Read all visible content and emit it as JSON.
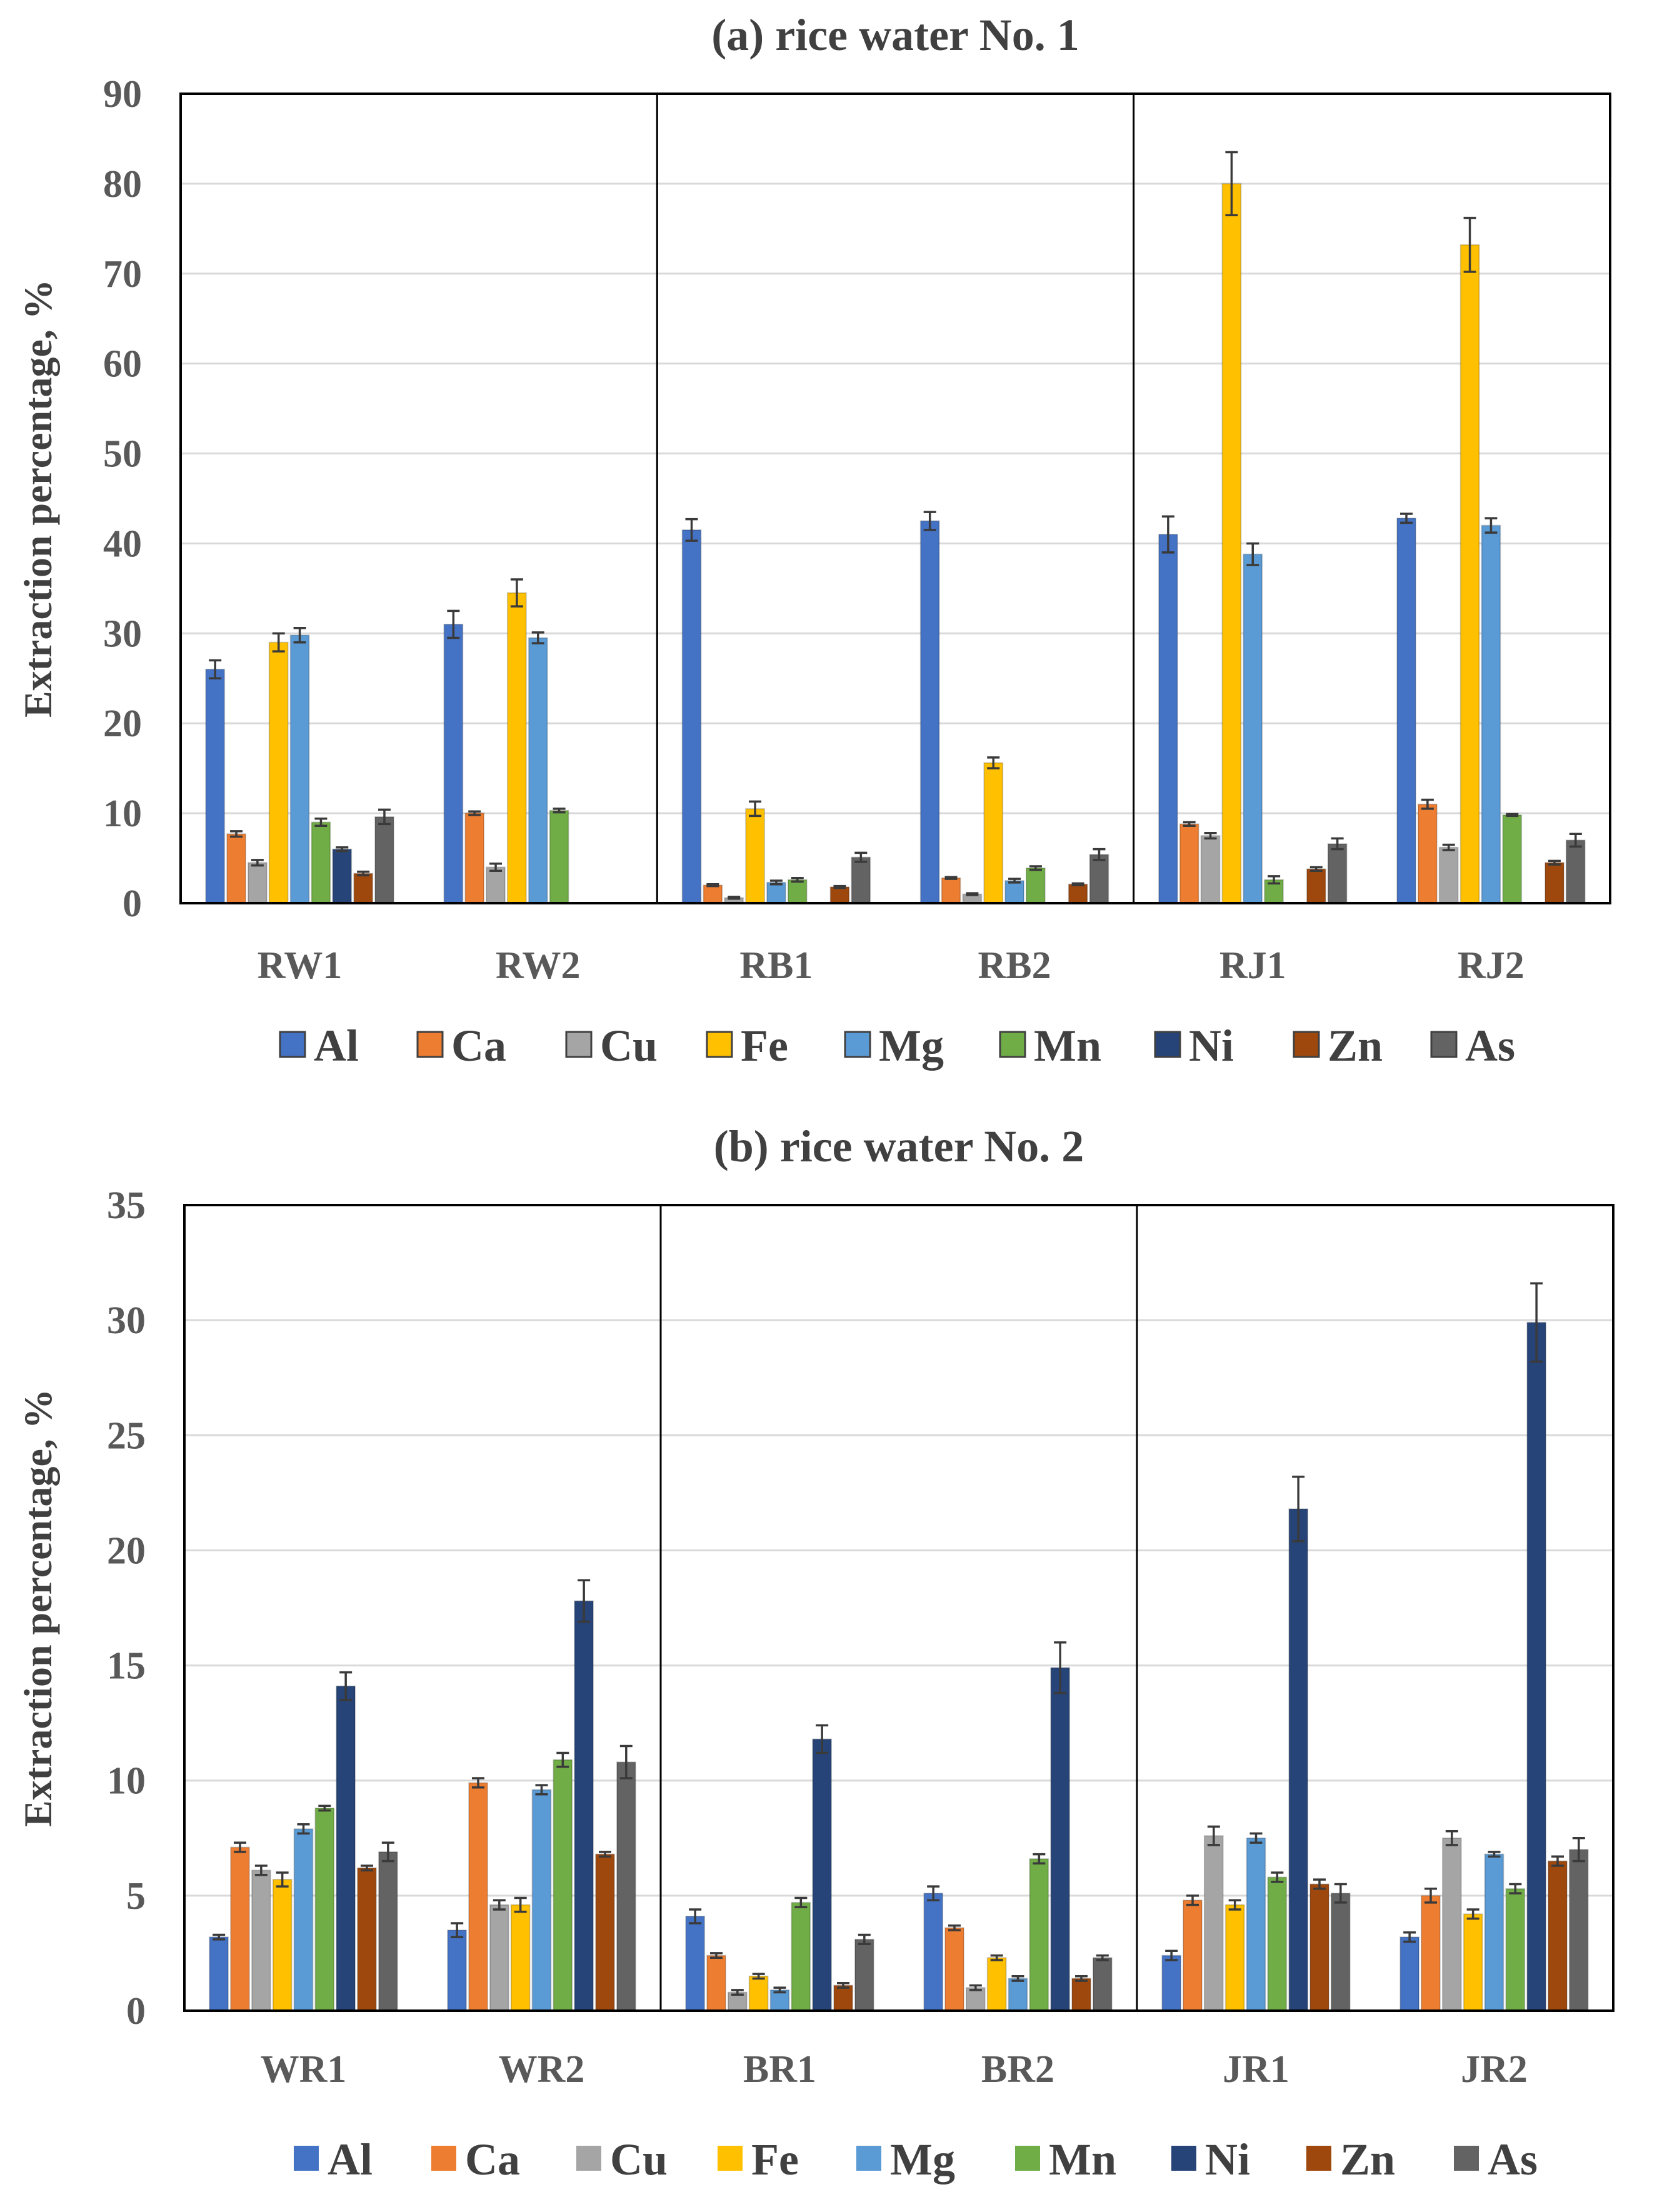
{
  "series_colors": {
    "Al": "#4472C4",
    "Ca": "#ED7D31",
    "Cu": "#A5A5A5",
    "Fe": "#FFC000",
    "Mg": "#5B9BD5",
    "Mn": "#70AD47",
    "Ni": "#264478",
    "Zn": "#9E480E",
    "As": "#636363"
  },
  "chart_data": [
    {
      "type": "bar",
      "title": "(a) rice water No. 1",
      "ylabel": "Extraction percentage, %",
      "xlabel": "",
      "ylim": [
        0,
        90
      ],
      "yticks": [
        "0",
        "10",
        "20",
        "30",
        "40",
        "50",
        "60",
        "70",
        "80",
        "90"
      ],
      "grid": true,
      "legend_position": "bottom",
      "group_separators_after": [
        1,
        3
      ],
      "categories": [
        "RW1",
        "RW2",
        "RB1",
        "RB2",
        "RJ1",
        "RJ2"
      ],
      "series": [
        {
          "name": "Al",
          "values": [
            26.0,
            31.0,
            41.5,
            42.5,
            41.0,
            42.8
          ],
          "errors": [
            1.0,
            1.5,
            1.2,
            1.0,
            2.0,
            0.5
          ]
        },
        {
          "name": "Ca",
          "values": [
            7.7,
            10.0,
            2.0,
            2.8,
            8.8,
            11.0
          ],
          "errors": [
            0.3,
            0.2,
            0.1,
            0.1,
            0.2,
            0.5
          ]
        },
        {
          "name": "Cu",
          "values": [
            4.5,
            4.0,
            0.6,
            1.0,
            7.5,
            6.2
          ],
          "errors": [
            0.3,
            0.4,
            0.1,
            0.1,
            0.3,
            0.3
          ]
        },
        {
          "name": "Fe",
          "values": [
            29.0,
            34.5,
            10.5,
            15.6,
            80.0,
            73.2
          ],
          "errors": [
            1.0,
            1.5,
            0.8,
            0.6,
            3.5,
            3.0
          ]
        },
        {
          "name": "Mg",
          "values": [
            29.8,
            29.5,
            2.3,
            2.5,
            38.8,
            42.0
          ],
          "errors": [
            0.8,
            0.6,
            0.2,
            0.2,
            1.2,
            0.8
          ]
        },
        {
          "name": "Mn",
          "values": [
            9.0,
            10.3,
            2.6,
            3.9,
            2.6,
            9.8
          ],
          "errors": [
            0.4,
            0.2,
            0.2,
            0.2,
            0.4,
            0.1
          ]
        },
        {
          "name": "Ni",
          "values": [
            6.0,
            0,
            0,
            0,
            0,
            0
          ],
          "errors": [
            0.2,
            0,
            0,
            0,
            0,
            0
          ]
        },
        {
          "name": "Zn",
          "values": [
            3.3,
            0,
            1.8,
            2.1,
            3.8,
            4.5
          ],
          "errors": [
            0.2,
            0,
            0.1,
            0.1,
            0.2,
            0.2
          ]
        },
        {
          "name": "As",
          "values": [
            9.6,
            0,
            5.1,
            5.4,
            6.6,
            7.0
          ],
          "errors": [
            0.8,
            0,
            0.5,
            0.6,
            0.6,
            0.7
          ]
        }
      ]
    },
    {
      "type": "bar",
      "title": "(b) rice water No. 2",
      "ylabel": "Extraction percentage, %",
      "xlabel": "",
      "ylim": [
        0,
        35
      ],
      "yticks": [
        "0",
        "5",
        "10",
        "15",
        "20",
        "25",
        "30",
        "35"
      ],
      "grid": true,
      "legend_position": "bottom",
      "group_separators_after": [
        1,
        3
      ],
      "categories": [
        "WR1",
        "WR2",
        "BR1",
        "BR2",
        "JR1",
        "JR2"
      ],
      "series": [
        {
          "name": "Al",
          "values": [
            3.2,
            3.5,
            4.1,
            5.1,
            2.4,
            3.2
          ],
          "errors": [
            0.1,
            0.3,
            0.3,
            0.3,
            0.2,
            0.2
          ]
        },
        {
          "name": "Ca",
          "values": [
            7.1,
            9.9,
            2.4,
            3.6,
            4.8,
            5.0
          ],
          "errors": [
            0.2,
            0.2,
            0.1,
            0.1,
            0.2,
            0.3
          ]
        },
        {
          "name": "Cu",
          "values": [
            6.1,
            4.6,
            0.8,
            1.0,
            7.6,
            7.5
          ],
          "errors": [
            0.2,
            0.2,
            0.1,
            0.1,
            0.4,
            0.3
          ]
        },
        {
          "name": "Fe",
          "values": [
            5.7,
            4.6,
            1.5,
            2.3,
            4.6,
            4.2
          ],
          "errors": [
            0.3,
            0.3,
            0.1,
            0.1,
            0.2,
            0.2
          ]
        },
        {
          "name": "Mg",
          "values": [
            7.9,
            9.6,
            0.9,
            1.4,
            7.5,
            6.8
          ],
          "errors": [
            0.2,
            0.2,
            0.1,
            0.1,
            0.2,
            0.1
          ]
        },
        {
          "name": "Mn",
          "values": [
            8.8,
            10.9,
            4.7,
            6.6,
            5.8,
            5.3
          ],
          "errors": [
            0.1,
            0.3,
            0.2,
            0.2,
            0.2,
            0.2
          ]
        },
        {
          "name": "Ni",
          "values": [
            14.1,
            17.8,
            11.8,
            14.9,
            21.8,
            29.9
          ],
          "errors": [
            0.6,
            0.9,
            0.6,
            1.1,
            1.4,
            1.7
          ]
        },
        {
          "name": "Zn",
          "values": [
            6.2,
            6.8,
            1.1,
            1.4,
            5.5,
            6.5
          ],
          "errors": [
            0.1,
            0.1,
            0.1,
            0.1,
            0.2,
            0.2
          ]
        },
        {
          "name": "As",
          "values": [
            6.9,
            10.8,
            3.1,
            2.3,
            5.1,
            7.0
          ],
          "errors": [
            0.4,
            0.7,
            0.2,
            0.1,
            0.4,
            0.5
          ]
        }
      ]
    }
  ]
}
